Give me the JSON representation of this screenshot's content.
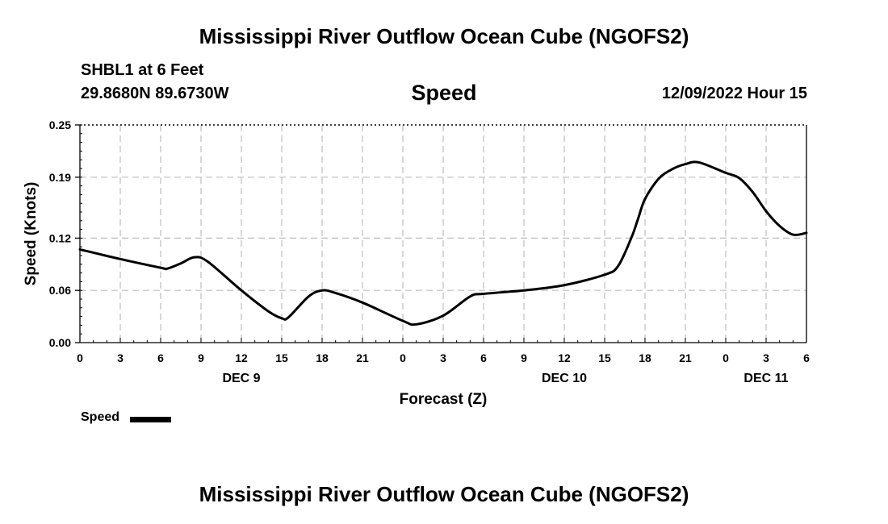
{
  "header": {
    "title": "Mississippi River Outflow Ocean Cube (NGOFS2)",
    "station": "SHBL1 at 6 Feet",
    "coords": "29.8680N  89.6730W",
    "variable": "Speed",
    "forecast_time": "12/09/2022 Hour 15"
  },
  "footer": {
    "title": "Mississippi River Outflow Ocean Cube (NGOFS2)"
  },
  "legend": {
    "label": "Speed"
  },
  "chart_data": {
    "type": "line",
    "title": "Speed",
    "xlabel": "Forecast (Z)",
    "ylabel": "Speed (Knots)",
    "xlim": [
      0,
      54
    ],
    "ylim": [
      0,
      0.25
    ],
    "grid": true,
    "x_ticks": [
      0,
      3,
      6,
      9,
      12,
      15,
      18,
      21,
      24,
      27,
      30,
      33,
      36,
      39,
      42,
      45,
      48,
      51,
      54
    ],
    "x_tick_labels": [
      "0",
      "3",
      "6",
      "9",
      "12",
      "15",
      "18",
      "21",
      "0",
      "3",
      "6",
      "9",
      "12",
      "15",
      "18",
      "21",
      "0",
      "3",
      "6"
    ],
    "date_labels": [
      {
        "x": 12,
        "label": "DEC 9"
      },
      {
        "x": 36,
        "label": "DEC 10"
      },
      {
        "x": 51,
        "label": "DEC 11"
      }
    ],
    "y_ticks": [
      0.0,
      0.06,
      0.12,
      0.19,
      0.25
    ],
    "y_tick_labels": [
      "0.00",
      "0.06",
      "0.12",
      "0.19",
      "0.25"
    ],
    "series": [
      {
        "name": "Speed",
        "color": "#000000",
        "x": [
          0,
          3,
          6,
          6.5,
          7.5,
          8.5,
          9.5,
          12,
          14,
          15,
          15.5,
          17,
          18,
          19,
          21,
          24,
          25,
          27,
          29,
          30,
          33,
          36,
          39,
          40,
          41,
          41.5,
          42,
          43,
          44,
          45,
          46,
          48,
          49,
          50,
          51,
          52,
          53,
          54
        ],
        "y": [
          0.107,
          0.096,
          0.086,
          0.085,
          0.091,
          0.098,
          0.093,
          0.06,
          0.036,
          0.028,
          0.029,
          0.053,
          0.06,
          0.057,
          0.046,
          0.025,
          0.021,
          0.031,
          0.053,
          0.056,
          0.06,
          0.066,
          0.078,
          0.088,
          0.121,
          0.143,
          0.165,
          0.188,
          0.199,
          0.205,
          0.207,
          0.195,
          0.189,
          0.173,
          0.151,
          0.134,
          0.124,
          0.126
        ]
      }
    ]
  }
}
